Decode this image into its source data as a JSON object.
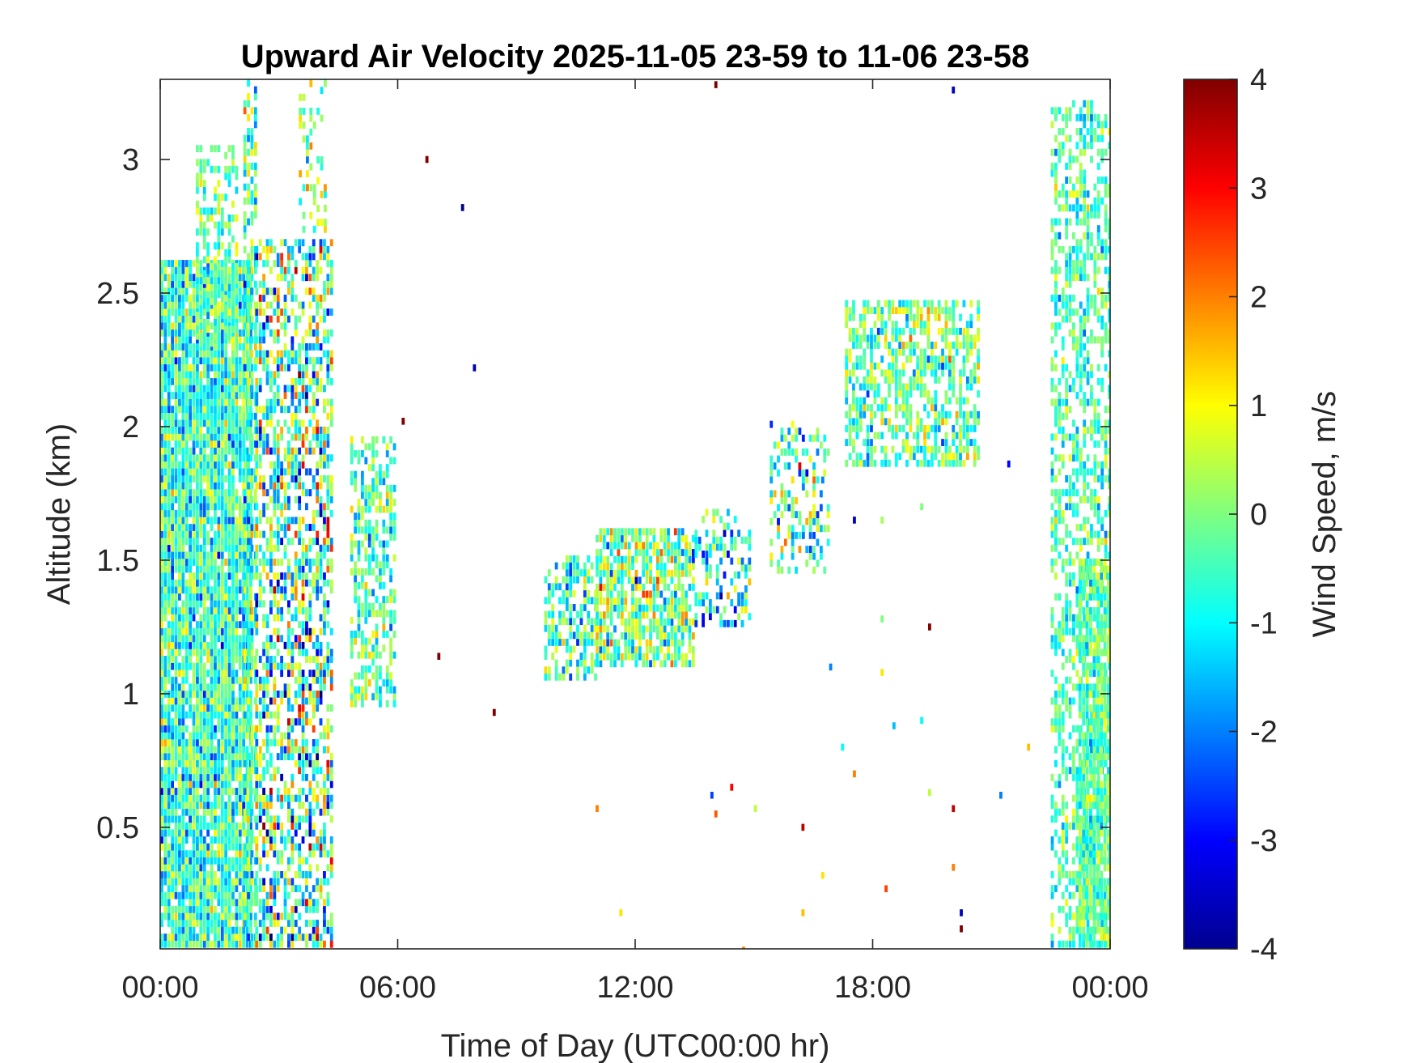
{
  "chart_data": {
    "type": "heatmap",
    "title": "Upward Air Velocity 2025-11-05 23-59 to 11-06 23-58",
    "xlabel": "Time of Day (UTC00:00 hr)",
    "ylabel": "Altitude (km)",
    "xlim": [
      0,
      24
    ],
    "ylim": [
      0.045,
      3.3
    ],
    "x_ticks": [
      0,
      6,
      12,
      18,
      24
    ],
    "x_tick_labels": [
      "00:00",
      "06:00",
      "12:00",
      "18:00",
      "00:00"
    ],
    "y_ticks": [
      0.5,
      1,
      1.5,
      2,
      2.5,
      3
    ],
    "y_tick_labels": [
      "0.5",
      "1",
      "1.5",
      "2",
      "2.5",
      "3"
    ],
    "grid": false,
    "colormap": "jet",
    "colorbar": {
      "label": "Wind Speed, m/s",
      "clim": [
        -4,
        4
      ],
      "ticks": [
        -4,
        -3,
        -2,
        -1,
        0,
        1,
        2,
        3,
        4
      ],
      "tick_labels": [
        "-4",
        "-3",
        "-2",
        "-1",
        "0",
        "1",
        "2",
        "3",
        "4"
      ]
    },
    "regions": [
      {
        "x0": 0.0,
        "x1": 2.3,
        "y0": 0.05,
        "y1": 2.6,
        "mean": -0.6,
        "spread": 1.3,
        "density": 0.93
      },
      {
        "x0": 0.9,
        "x1": 1.9,
        "y0": 2.3,
        "y1": 3.05,
        "mean": -0.3,
        "spread": 1.0,
        "density": 0.55
      },
      {
        "x0": 2.1,
        "x1": 2.4,
        "y0": 0.05,
        "y1": 3.3,
        "mean": -0.5,
        "spread": 1.4,
        "density": 0.55
      },
      {
        "x0": 2.4,
        "x1": 4.3,
        "y0": 0.05,
        "y1": 2.7,
        "mean": -0.3,
        "spread": 2.2,
        "density": 0.6
      },
      {
        "x0": 3.5,
        "x1": 4.2,
        "y0": 2.7,
        "y1": 3.3,
        "mean": 0.2,
        "spread": 1.4,
        "density": 0.3
      },
      {
        "x0": 4.8,
        "x1": 5.9,
        "y0": 0.95,
        "y1": 1.95,
        "mean": -0.4,
        "spread": 1.3,
        "density": 0.55
      },
      {
        "x0": 9.7,
        "x1": 11.0,
        "y0": 1.05,
        "y1": 1.5,
        "mean": -0.6,
        "spread": 1.3,
        "density": 0.55
      },
      {
        "x0": 11.0,
        "x1": 13.5,
        "y0": 1.1,
        "y1": 1.62,
        "mean": 0.0,
        "spread": 1.6,
        "density": 0.75
      },
      {
        "x0": 13.5,
        "x1": 14.9,
        "y0": 1.25,
        "y1": 1.68,
        "mean": -0.8,
        "spread": 1.7,
        "density": 0.45
      },
      {
        "x0": 15.4,
        "x1": 16.9,
        "y0": 1.45,
        "y1": 2.0,
        "mean": -0.5,
        "spread": 1.8,
        "density": 0.35
      },
      {
        "x0": 17.3,
        "x1": 20.7,
        "y0": 1.85,
        "y1": 2.45,
        "mean": -0.2,
        "spread": 1.3,
        "density": 0.6
      },
      {
        "x0": 22.5,
        "x1": 24.0,
        "y0": 0.05,
        "y1": 3.2,
        "mean": -0.4,
        "spread": 1.0,
        "density": 0.5
      },
      {
        "x0": 23.2,
        "x1": 24.0,
        "y0": 0.05,
        "y1": 1.5,
        "mean": -0.3,
        "spread": 1.0,
        "density": 0.8
      }
    ],
    "sparse_points": [
      {
        "x": 6.7,
        "y": 3.0,
        "v": 4
      },
      {
        "x": 7.6,
        "y": 2.82,
        "v": -4
      },
      {
        "x": 7.9,
        "y": 2.22,
        "v": -3.6
      },
      {
        "x": 6.1,
        "y": 2.02,
        "v": 4
      },
      {
        "x": 7.0,
        "y": 1.14,
        "v": 4
      },
      {
        "x": 8.4,
        "y": 0.93,
        "v": 4
      },
      {
        "x": 14.0,
        "y": 3.28,
        "v": 4
      },
      {
        "x": 20.0,
        "y": 3.26,
        "v": -3.5
      },
      {
        "x": 11.0,
        "y": 0.57,
        "v": 2
      },
      {
        "x": 11.6,
        "y": 0.18,
        "v": 1.2
      },
      {
        "x": 13.9,
        "y": 0.62,
        "v": -2.5
      },
      {
        "x": 14.0,
        "y": 0.55,
        "v": 2.3
      },
      {
        "x": 14.4,
        "y": 0.65,
        "v": 3
      },
      {
        "x": 14.7,
        "y": 0.04,
        "v": 2
      },
      {
        "x": 15.0,
        "y": 0.57,
        "v": 0.5
      },
      {
        "x": 16.2,
        "y": 0.5,
        "v": 3.5
      },
      {
        "x": 16.2,
        "y": 0.18,
        "v": 1.5
      },
      {
        "x": 16.7,
        "y": 0.32,
        "v": 1.2
      },
      {
        "x": 16.9,
        "y": 1.1,
        "v": -2
      },
      {
        "x": 17.2,
        "y": 0.8,
        "v": -1
      },
      {
        "x": 17.5,
        "y": 0.7,
        "v": 2
      },
      {
        "x": 17.5,
        "y": 1.65,
        "v": -3.5
      },
      {
        "x": 18.2,
        "y": 1.28,
        "v": 0
      },
      {
        "x": 18.2,
        "y": 1.08,
        "v": 1.2
      },
      {
        "x": 18.3,
        "y": 0.27,
        "v": 2.5
      },
      {
        "x": 18.5,
        "y": 0.88,
        "v": -1.5
      },
      {
        "x": 19.2,
        "y": 0.9,
        "v": -1
      },
      {
        "x": 19.2,
        "y": 1.7,
        "v": 0
      },
      {
        "x": 19.4,
        "y": 1.25,
        "v": 4
      },
      {
        "x": 19.4,
        "y": 0.63,
        "v": 0.5
      },
      {
        "x": 20.0,
        "y": 0.57,
        "v": 3.5
      },
      {
        "x": 20.0,
        "y": 0.35,
        "v": 2
      },
      {
        "x": 20.2,
        "y": 0.18,
        "v": -3.5
      },
      {
        "x": 20.2,
        "y": 0.12,
        "v": 4
      },
      {
        "x": 21.2,
        "y": 0.62,
        "v": -2
      },
      {
        "x": 21.4,
        "y": 1.86,
        "v": -3
      },
      {
        "x": 21.9,
        "y": 0.8,
        "v": 1.5
      },
      {
        "x": 18.2,
        "y": 1.65,
        "v": 0.3
      },
      {
        "x": 16.7,
        "y": 1.8,
        "v": -2
      }
    ]
  },
  "colors": {
    "axis": "#262626",
    "background": "#ffffff",
    "colormap_stops": [
      "#00008f",
      "#0000ff",
      "#00ffff",
      "#ffff00",
      "#ff0000",
      "#800000"
    ]
  }
}
